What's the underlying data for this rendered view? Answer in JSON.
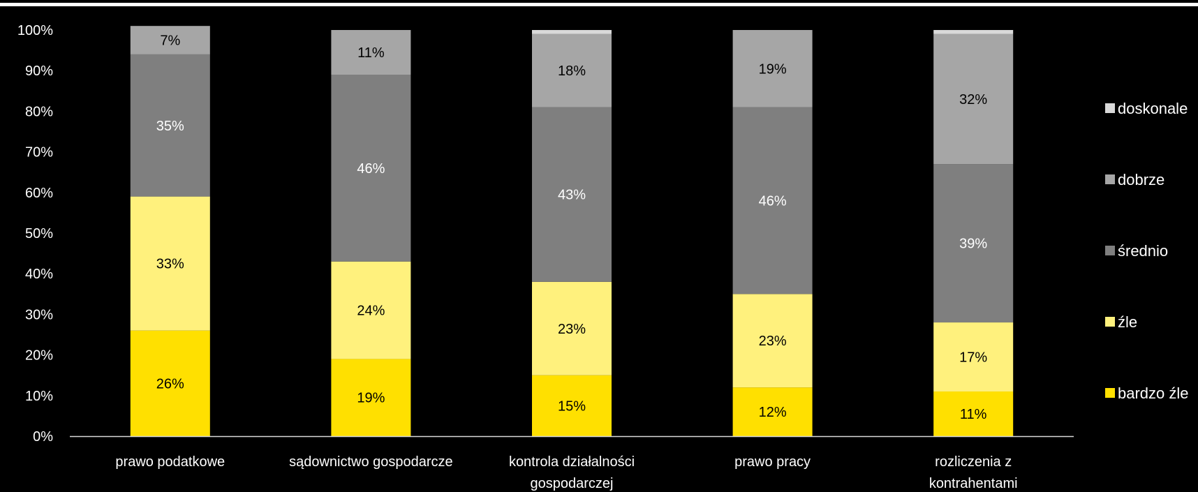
{
  "chart_data": {
    "type": "bar",
    "stacked": true,
    "percent_stacked": true,
    "categories": [
      [
        "prawo podatkowe"
      ],
      [
        "sądownictwo gospodarcze"
      ],
      [
        "kontrola działalności",
        "gospodarczej"
      ],
      [
        "prawo pracy"
      ],
      [
        "rozliczenia z",
        "kontrahentami"
      ]
    ],
    "series": [
      {
        "name": "bardzo źle",
        "color": "#FFE000",
        "label_color": "#000000",
        "values": [
          26,
          19,
          15,
          12,
          11
        ],
        "labels": [
          "26%",
          "19%",
          "15%",
          "12%",
          "11%"
        ]
      },
      {
        "name": "źle",
        "color": "#FFF17D",
        "label_color": "#000000",
        "values": [
          33,
          24,
          23,
          23,
          17
        ],
        "labels": [
          "33%",
          "24%",
          "23%",
          "23%",
          "17%"
        ]
      },
      {
        "name": "średnio",
        "color": "#7F7F7F",
        "label_color": "#ffffff",
        "values": [
          35,
          46,
          43,
          46,
          39
        ],
        "labels": [
          "35%",
          "46%",
          "43%",
          "46%",
          "39%"
        ]
      },
      {
        "name": "dobrze",
        "color": "#A6A6A6",
        "label_color": "#000000",
        "values": [
          7,
          11,
          18,
          19,
          32
        ],
        "labels": [
          "7%",
          "11%",
          "18%",
          "19%",
          "32%"
        ]
      },
      {
        "name": "doskonale",
        "color": "#D9D9D9",
        "label_color": "#000000",
        "values": [
          0,
          0,
          1,
          0,
          1
        ],
        "labels": [
          "",
          "",
          "",
          "",
          ""
        ]
      }
    ],
    "y_ticks": [
      "0%",
      "10%",
      "20%",
      "30%",
      "40%",
      "50%",
      "60%",
      "70%",
      "80%",
      "90%",
      "100%"
    ],
    "ylim": [
      0,
      100
    ],
    "xlabel": "",
    "ylabel": "",
    "title": "",
    "grid": false,
    "legend_position": "right"
  }
}
